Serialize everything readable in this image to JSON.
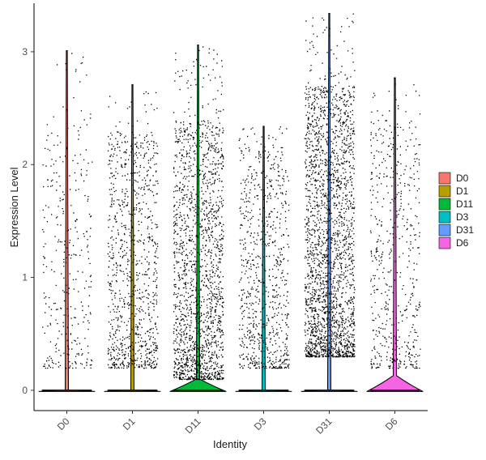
{
  "chart_data": {
    "type": "violin",
    "title": "",
    "xlabel": "Identity",
    "ylabel": "Expression Level",
    "ylim": [
      -0.18,
      3.43
    ],
    "yticks": [
      0,
      1,
      2,
      3
    ],
    "grid": false,
    "legend_position": "right",
    "categories": [
      "D0",
      "D1",
      "D11",
      "D3",
      "D31",
      "D6"
    ],
    "series": [
      {
        "name": "D0",
        "color": "#F8766D",
        "max": 3.01,
        "point_count": 330,
        "dense_range": [
          0.2,
          2.5
        ],
        "zero_bulge": 0.0
      },
      {
        "name": "D1",
        "color": "#B79F00",
        "max": 2.71,
        "point_count": 950,
        "dense_range": [
          0.2,
          2.3
        ],
        "zero_bulge": 0.0
      },
      {
        "name": "D11",
        "color": "#00BA38",
        "max": 3.06,
        "point_count": 1800,
        "dense_range": [
          0.1,
          2.4
        ],
        "zero_bulge": 0.1
      },
      {
        "name": "D3",
        "color": "#00BFC4",
        "max": 2.34,
        "point_count": 800,
        "dense_range": [
          0.2,
          2.2
        ],
        "zero_bulge": 0.0
      },
      {
        "name": "D31",
        "color": "#619CFF",
        "max": 3.34,
        "point_count": 2300,
        "dense_range": [
          0.3,
          2.7
        ],
        "zero_bulge": 0.0
      },
      {
        "name": "D6",
        "color": "#F564E3",
        "max": 2.77,
        "point_count": 550,
        "dense_range": [
          0.2,
          2.4
        ],
        "zero_bulge": 0.13
      }
    ]
  }
}
